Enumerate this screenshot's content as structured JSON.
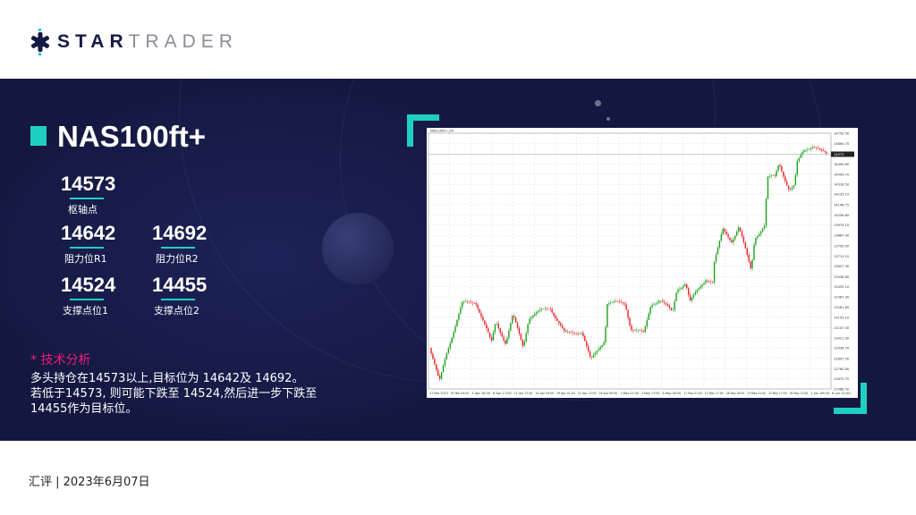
{
  "brand": {
    "name_bold": "STAR",
    "name_light": "TRADER"
  },
  "instrument": "NAS100ft+",
  "levels": {
    "pivot": {
      "value": "14573",
      "label": "枢轴点"
    },
    "r1": {
      "value": "14642",
      "label": "阻力位R1"
    },
    "r2": {
      "value": "14692",
      "label": "阻力位R2"
    },
    "s1": {
      "value": "14524",
      "label": "支撑点位1"
    },
    "s2": {
      "value": "14455",
      "label": "支撑点位2"
    }
  },
  "analysis": {
    "heading": "* 技术分析",
    "lines": [
      "多头持仓在14573以上,目标位为 14642及 14692。",
      "若低于14573, 则可能下跌至 14524,然后进一步下跌至",
      "14455作为目标位。"
    ]
  },
  "footer": "汇评 | 2023年6月07日",
  "colors": {
    "accent": "#1fd0c2",
    "highlight": "#ee1d7a",
    "background": "#141840",
    "up": "#1aa31a",
    "down": "#e8202a"
  },
  "chart_data": {
    "type": "candlestick",
    "header": "NAS100ft+,H4",
    "current_price": "14573",
    "ylim": [
      12588.9,
      14750.5
    ],
    "y_ticks": [
      "14750.50",
      "14664.70",
      "14490.60",
      "14404.70",
      "14318.50",
      "14235.10",
      "14146.75",
      "14058.80",
      "13975.10",
      "13887.30",
      "13799.50",
      "13712.10",
      "13627.30",
      "13538.80",
      "13455.10",
      "13367.30",
      "13281.80",
      "13195.10",
      "13107.30",
      "13021.00",
      "12936.70",
      "12847.30",
      "12760.80",
      "12675.70",
      "12588.90"
    ],
    "x_ticks": [
      "27 Mar 2023",
      "30 Mar 09:00",
      "5 Apr 16:00",
      "6 Apr 17:00",
      "11 Apr 17:00",
      "14 Apr 09:00",
      "19 Apr 01:00",
      "21 Apr 17:00",
      "26 Apr 09:00",
      "1 May 01:00",
      "3 May 17:00",
      "8 May 09:00",
      "11 May 01:00",
      "15 May 17:00",
      "18 May 09:00",
      "23 May 01:00",
      "25 May 17:00",
      "30 May 13:00",
      "2 Jun 09:00",
      "6 Jun 22:00"
    ],
    "price_path": [
      [
        0,
        12938
      ],
      [
        0.025,
        12644
      ],
      [
        0.043,
        12899
      ],
      [
        0.083,
        13308
      ],
      [
        0.116,
        13333
      ],
      [
        0.156,
        12976
      ],
      [
        0.167,
        13167
      ],
      [
        0.192,
        12976
      ],
      [
        0.21,
        13206
      ],
      [
        0.236,
        12950
      ],
      [
        0.25,
        13193
      ],
      [
        0.304,
        13282
      ],
      [
        0.341,
        13053
      ],
      [
        0.384,
        13078
      ],
      [
        0.406,
        12823
      ],
      [
        0.442,
        13014
      ],
      [
        0.446,
        13321
      ],
      [
        0.493,
        13308
      ],
      [
        0.507,
        13104
      ],
      [
        0.54,
        13053
      ],
      [
        0.558,
        13308
      ],
      [
        0.58,
        13346
      ],
      [
        0.612,
        13231
      ],
      [
        0.623,
        13435
      ],
      [
        0.645,
        13487
      ],
      [
        0.656,
        13321
      ],
      [
        0.696,
        13525
      ],
      [
        0.714,
        13487
      ],
      [
        0.717,
        13652
      ],
      [
        0.739,
        13933
      ],
      [
        0.761,
        13844
      ],
      [
        0.779,
        13959
      ],
      [
        0.797,
        13742
      ],
      [
        0.81,
        13589
      ],
      [
        0.819,
        13869
      ],
      [
        0.844,
        13971
      ],
      [
        0.851,
        14367
      ],
      [
        0.87,
        14380
      ],
      [
        0.88,
        14507
      ],
      [
        0.906,
        14265
      ],
      [
        0.92,
        14303
      ],
      [
        0.924,
        14482
      ],
      [
        0.942,
        14610
      ],
      [
        0.964,
        14648
      ],
      [
        0.989,
        14584
      ],
      [
        1,
        14573
      ]
    ]
  }
}
